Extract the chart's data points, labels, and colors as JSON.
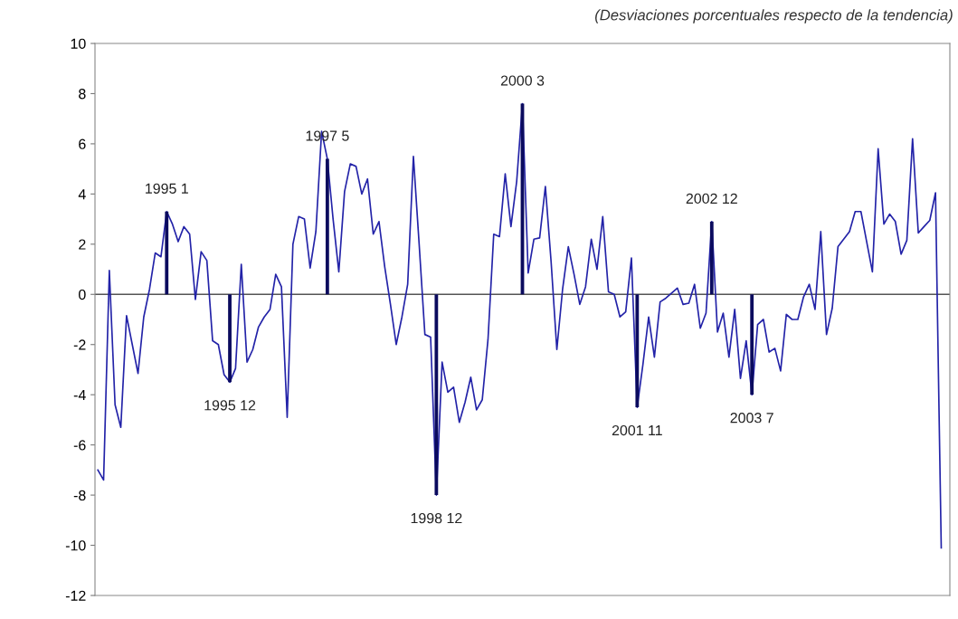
{
  "chart_data": {
    "type": "line",
    "subtitle": "(Desviaciones porcentuales respecto de la tendencia)",
    "categories": [
      null,
      null,
      null,
      null,
      null,
      null,
      null,
      null,
      null,
      null,
      null,
      null,
      null,
      null,
      null,
      null,
      null,
      null,
      null,
      null,
      null,
      null,
      null,
      null,
      null,
      null,
      null,
      null,
      null,
      null,
      null,
      null,
      null,
      null,
      null,
      null,
      null,
      null,
      null,
      null,
      null,
      null,
      null,
      null,
      null,
      null,
      null,
      null,
      null,
      null,
      null,
      null,
      null,
      null,
      null,
      null,
      null,
      null,
      null,
      null,
      null,
      null,
      null,
      null,
      null,
      null,
      null,
      null,
      null,
      null,
      null,
      null,
      null,
      null,
      null,
      null,
      null,
      null,
      null,
      null,
      null,
      null,
      null,
      null,
      null,
      null,
      null,
      null,
      null,
      null,
      null,
      null,
      null,
      null,
      null,
      null,
      null,
      null,
      null,
      null,
      null,
      null,
      null,
      null,
      null,
      null,
      null,
      null,
      null,
      null,
      null,
      null,
      null,
      null,
      null,
      null,
      null,
      null,
      null,
      null,
      null,
      null,
      null,
      null,
      null,
      null,
      null,
      null,
      null,
      null,
      null,
      null,
      null,
      null,
      null,
      null,
      null,
      null,
      null,
      null,
      null,
      null,
      null,
      null,
      null,
      null,
      null,
      null
    ],
    "series": [
      {
        "color": "#2323a8",
        "values": [
          -7.0,
          -7.4,
          0.95,
          -4.4,
          -5.3,
          -0.85,
          -2.0,
          -3.15,
          -0.9,
          0.2,
          1.65,
          1.5,
          3.3,
          2.8,
          2.1,
          2.7,
          2.4,
          -0.2,
          1.7,
          1.35,
          -1.85,
          -2.0,
          -3.2,
          -3.5,
          -2.95,
          1.2,
          -2.7,
          -2.2,
          -1.3,
          -0.9,
          -0.6,
          0.8,
          0.3,
          -4.9,
          2.0,
          3.1,
          3.0,
          1.05,
          2.5,
          6.5,
          5.4,
          3.0,
          0.9,
          4.1,
          5.2,
          5.1,
          4.0,
          4.6,
          2.4,
          2.9,
          1.1,
          -0.4,
          -2.0,
          -0.9,
          0.4,
          5.5,
          2.0,
          -1.6,
          -1.7,
          -8.0,
          -2.7,
          -3.9,
          -3.7,
          -5.1,
          -4.3,
          -3.3,
          -4.6,
          -4.2,
          -1.8,
          2.4,
          2.3,
          4.8,
          2.7,
          4.5,
          7.6,
          0.85,
          2.2,
          2.25,
          4.3,
          1.3,
          -2.2,
          0.2,
          1.9,
          0.8,
          -0.4,
          0.3,
          2.2,
          1.0,
          3.1,
          0.1,
          0.0,
          -0.9,
          -0.7,
          1.45,
          -4.5,
          -2.8,
          -0.9,
          -2.5,
          -0.3,
          -0.15,
          0.05,
          0.25,
          -0.4,
          -0.35,
          0.4,
          -1.35,
          -0.75,
          2.9,
          -1.5,
          -0.75,
          -2.5,
          -0.6,
          -3.35,
          -1.85,
          -4.0,
          -1.2,
          -1.0,
          -2.3,
          -2.15,
          -3.05,
          -0.8,
          -1.0,
          -1.0,
          -0.1,
          0.4,
          -0.6,
          2.5,
          -1.6,
          -0.55,
          1.9,
          2.2,
          2.5,
          3.3,
          3.3,
          2.1,
          0.9,
          5.8,
          2.8,
          3.2,
          2.9,
          1.6,
          2.15,
          6.2,
          2.45,
          2.7,
          2.95,
          4.05,
          -10.1
        ]
      },
      {
        "type": "bar",
        "color": "#0b0b5e",
        "values": [
          null,
          null,
          null,
          null,
          null,
          null,
          null,
          null,
          null,
          null,
          null,
          null,
          3.3,
          null,
          null,
          null,
          null,
          null,
          null,
          null,
          null,
          null,
          null,
          -3.5,
          null,
          null,
          null,
          null,
          null,
          null,
          null,
          null,
          null,
          null,
          null,
          null,
          null,
          null,
          null,
          null,
          5.4,
          null,
          null,
          null,
          null,
          null,
          null,
          null,
          null,
          null,
          null,
          null,
          null,
          null,
          null,
          null,
          null,
          null,
          null,
          -8.0,
          null,
          null,
          null,
          null,
          null,
          null,
          null,
          null,
          null,
          null,
          null,
          null,
          null,
          null,
          7.6,
          null,
          null,
          null,
          null,
          null,
          null,
          null,
          null,
          null,
          null,
          null,
          null,
          null,
          null,
          null,
          null,
          null,
          null,
          null,
          -4.5,
          null,
          null,
          null,
          null,
          null,
          null,
          null,
          null,
          null,
          null,
          null,
          null,
          2.9,
          null,
          null,
          null,
          null,
          null,
          null,
          -4.0,
          null,
          null,
          null,
          null,
          null,
          null,
          null,
          null,
          null,
          null,
          null,
          null,
          null,
          null,
          null,
          null,
          null,
          null,
          null,
          null,
          null,
          null,
          null,
          null,
          null,
          null,
          null,
          null,
          null,
          null,
          null,
          null,
          null
        ]
      }
    ],
    "annotations": [
      {
        "text": "1995 1",
        "y": 3.3
      },
      {
        "text": "1995 12",
        "y": -3.5
      },
      {
        "text": "1997 5",
        "y": 5.4
      },
      {
        "text": "1998 12",
        "y": -8.0
      },
      {
        "text": "2000 3",
        "y": 7.6
      },
      {
        "text": "2001 11",
        "y": -4.5
      },
      {
        "text": "2002 12",
        "y": 2.9
      },
      {
        "text": "2003 7",
        "y": -4.0
      }
    ],
    "ref_lines": [
      {
        "axis": "y",
        "value": 0,
        "color": "#555555"
      }
    ],
    "ylim": [
      -12,
      10
    ],
    "yticks": [
      -12,
      -10,
      -8,
      -6,
      -4,
      -2,
      0,
      2,
      4,
      6,
      8,
      10
    ],
    "tick_labels": "y",
    "grid": false
  }
}
